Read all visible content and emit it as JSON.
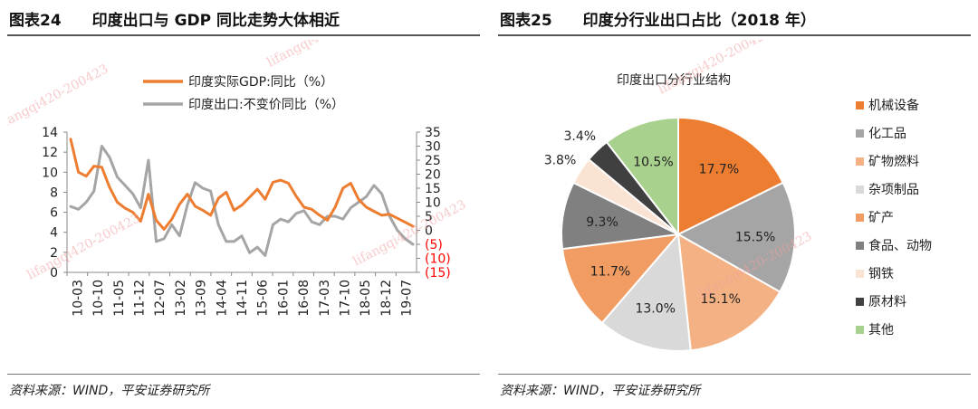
{
  "left_panel": {
    "title": "图表24　　印度出口与 GDP 同比走势大体相近",
    "source": "资料来源：WIND，平安证券研究所"
  },
  "right_panel": {
    "title": "图表25　　印度分行业出口占比（2018 年）",
    "source": "资料来源：WIND，平安证券研究所"
  },
  "watermark": "lifangqi420-200423",
  "colors": {
    "gdp": "#ed7d31",
    "export": "#a5a5a5",
    "neg_tick": "#ff0000"
  },
  "chart_data": [
    {
      "type": "line",
      "title": "",
      "legend": [
        "印度实际GDP:同比（%）",
        "印度出口:不变价同比（%）"
      ],
      "x_ticks": [
        "10-03",
        "10-10",
        "11-05",
        "11-12",
        "12-07",
        "13-02",
        "13-09",
        "14-04",
        "14-11",
        "15-06",
        "16-01",
        "16-08",
        "17-03",
        "17-10",
        "18-05",
        "18-12",
        "19-07"
      ],
      "left_axis": {
        "ylim": [
          0,
          14
        ],
        "ticks": [
          "0",
          "2",
          "4",
          "6",
          "8",
          "10",
          "12",
          "14"
        ]
      },
      "right_axis": {
        "ylim": [
          -15,
          35
        ],
        "ticks": [
          "(15)",
          "(10)",
          "(5)",
          "0",
          "5",
          "10",
          "15",
          "20",
          "25",
          "30",
          "35"
        ]
      },
      "series": [
        {
          "name": "印度实际GDP:同比（%）",
          "axis": "left",
          "values": [
            13.3,
            10.0,
            9.6,
            10.6,
            10.5,
            8.5,
            7.0,
            6.4,
            6.0,
            5.1,
            7.8,
            5.2,
            4.3,
            5.3,
            6.8,
            7.8,
            6.6,
            6.2,
            5.7,
            7.4,
            8.0,
            6.2,
            6.7,
            7.5,
            8.3,
            7.3,
            9.0,
            9.2,
            8.9,
            7.6,
            6.5,
            6.3,
            5.7,
            5.2,
            6.5,
            8.4,
            8.9,
            7.3,
            6.5,
            6.1,
            5.7,
            5.8,
            5.4,
            5.0,
            4.6
          ]
        },
        {
          "name": "印度出口:不变价同比（%）",
          "axis": "right",
          "values": [
            8.5,
            7.5,
            10.0,
            14.0,
            30.0,
            26.0,
            19.0,
            16.0,
            13.0,
            8.0,
            25.0,
            -4.0,
            -3.0,
            2.0,
            -2.0,
            9.0,
            17.0,
            15.0,
            14.0,
            2.0,
            -4.0,
            -4.0,
            -2.0,
            -8.0,
            -6.0,
            -9.0,
            2.0,
            4.0,
            3.0,
            6.0,
            7.0,
            3.0,
            2.0,
            5.0,
            5.0,
            4.0,
            8.0,
            10.0,
            12.0,
            16.0,
            13.0,
            5.0,
            0.0,
            -3.0,
            -5.0
          ]
        }
      ]
    },
    {
      "type": "pie",
      "title": "印度出口分行业结构",
      "slices": [
        {
          "label": "机械设备",
          "value": 17.7,
          "text": "17.7%",
          "color": "#ed7d31"
        },
        {
          "label": "化工品",
          "value": 15.5,
          "text": "15.5%",
          "color": "#a5a5a5"
        },
        {
          "label": "矿物燃料",
          "value": 15.1,
          "text": "15.1%",
          "color": "#f4b183"
        },
        {
          "label": "杂项制品",
          "value": 13.0,
          "text": "13.0%",
          "color": "#d9d9d9"
        },
        {
          "label": "矿产",
          "value": 11.7,
          "text": "11.7%",
          "color": "#f19c62"
        },
        {
          "label": "食品、动物",
          "value": 9.3,
          "text": "9.3%",
          "color": "#808080"
        },
        {
          "label": "钢铁",
          "value": 3.8,
          "text": "3.8%",
          "color": "#fbe3d4"
        },
        {
          "label": "原材料",
          "value": 3.4,
          "text": "3.4%",
          "color": "#404040"
        },
        {
          "label": "其他",
          "value": 10.5,
          "text": "10.5%",
          "color": "#a9d18e"
        }
      ]
    }
  ]
}
